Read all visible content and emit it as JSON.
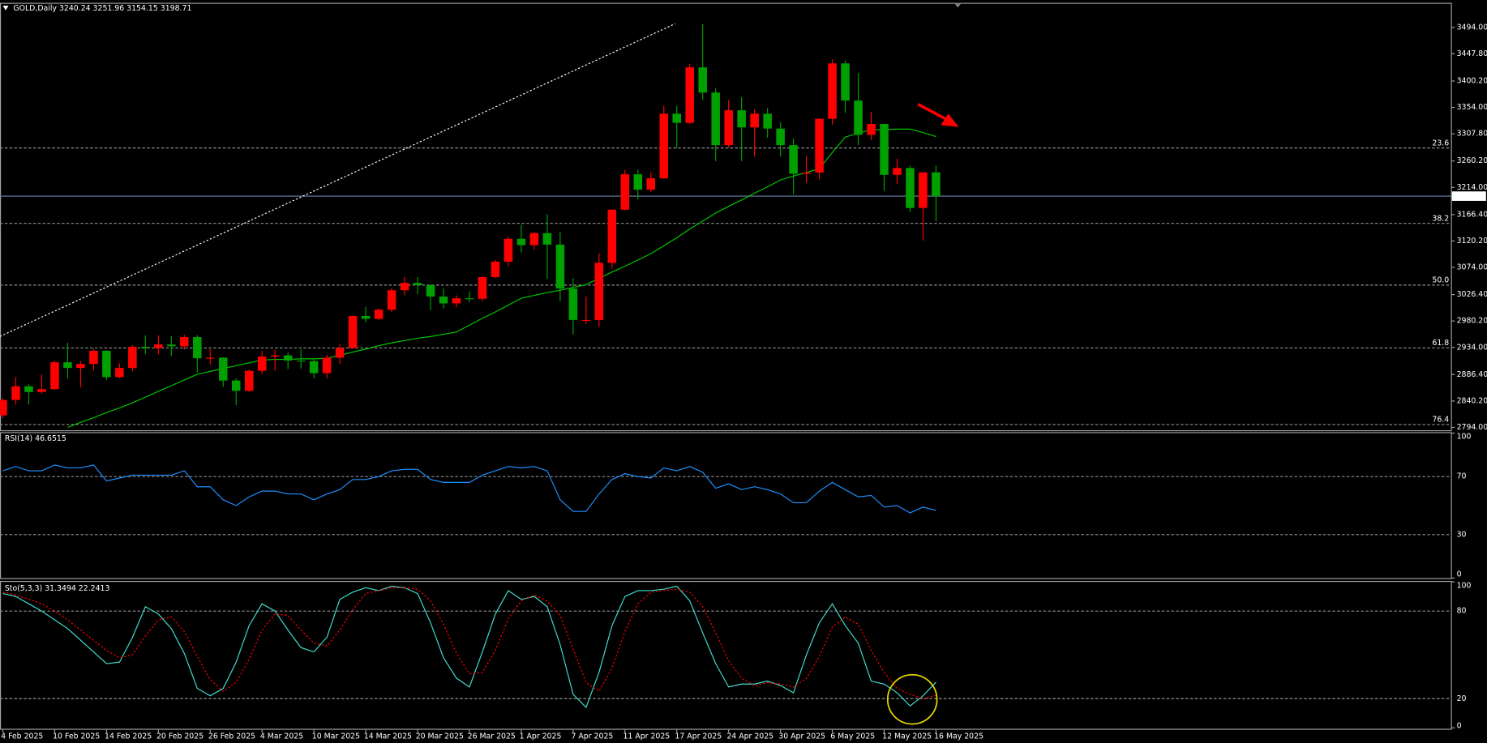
{
  "chart_data": [
    {
      "type": "candlestick",
      "title": "GOLD,Daily  3240.24 3251.96 3154.15 3198.71",
      "categories": [
        "4 Feb 2025",
        null,
        null,
        null,
        "10 Feb 2025",
        null,
        null,
        null,
        "14 Feb 2025",
        null,
        null,
        null,
        "20 Feb 2025",
        null,
        null,
        null,
        "26 Feb 2025",
        null,
        null,
        null,
        "4 Mar 2025",
        null,
        null,
        null,
        "10 Mar 2025",
        null,
        null,
        null,
        "14 Mar 2025",
        null,
        null,
        null,
        "20 Mar 2025",
        null,
        null,
        null,
        "26 Mar 2025",
        null,
        null,
        null,
        "1 Apr 2025",
        null,
        null,
        null,
        "7 Apr 2025",
        null,
        null,
        null,
        "11 Apr 2025",
        null,
        null,
        null,
        "17 Apr 2025",
        null,
        null,
        null,
        "24 Apr 2025",
        null,
        null,
        null,
        "30 Apr 2025",
        null,
        null,
        null,
        "6 May 2025",
        null,
        null,
        null,
        "12 May 2025",
        null,
        null,
        null,
        "16 May 2025"
      ],
      "open": [
        2815,
        2842,
        2866,
        2856,
        2861,
        2908,
        2898,
        2905,
        2928,
        2882,
        2898,
        2935,
        2933,
        2939,
        2936,
        2952,
        2915,
        2916,
        2876,
        2858,
        2893,
        2918,
        2920,
        2911,
        2910,
        2889,
        2916,
        2933,
        2989,
        2984,
        3000,
        3034,
        3047,
        3043,
        3023,
        3011,
        3020,
        3019,
        3057,
        3084,
        3124,
        3113,
        3134,
        3114,
        3037,
        2982,
        2982,
        3082,
        3175,
        3237,
        3210,
        3230,
        3343,
        3327,
        3424,
        3380,
        3288,
        3349,
        3319,
        3343,
        3317,
        3288,
        3238,
        3240,
        3334,
        3431,
        3366,
        3306,
        3325,
        3236,
        3248,
        3178,
        3240.24
      ],
      "high": [
        2845,
        2882,
        2870,
        2887,
        2911,
        2942,
        2910,
        2932,
        2929,
        2906,
        2938,
        2955,
        2955,
        2954,
        2956,
        2955,
        2931,
        2917,
        2880,
        2895,
        2928,
        2930,
        2925,
        2930,
        2914,
        2921,
        2940,
        2990,
        3005,
        3002,
        3038,
        3057,
        3057,
        3044,
        3037,
        3025,
        3032,
        3059,
        3087,
        3128,
        3149,
        3136,
        3167,
        3136,
        3055,
        3023,
        3099,
        3176,
        3245,
        3245,
        3240,
        3357,
        3357,
        3430,
        3500,
        3387,
        3367,
        3372,
        3351,
        3353,
        3328,
        3300,
        3269,
        3335,
        3438,
        3436,
        3414,
        3346,
        3325,
        3264,
        3252,
        3240.5,
        3251.96
      ],
      "low": [
        2810,
        2834,
        2834,
        2853,
        2860,
        2880,
        2864,
        2894,
        2877,
        2880,
        2892,
        2922,
        2922,
        2919,
        2930,
        2890,
        2904,
        2865,
        2833,
        2856,
        2888,
        2893,
        2896,
        2897,
        2880,
        2880,
        2905,
        2932,
        2978,
        2982,
        2996,
        3025,
        3027,
        2999,
        3002,
        3004,
        3013,
        3015,
        3055,
        3076,
        3100,
        3105,
        3054,
        3015,
        2957,
        2975,
        2970,
        3072,
        3174,
        3193,
        3206,
        3229,
        3283,
        3325,
        3367,
        3260,
        3284,
        3260,
        3268,
        3301,
        3268,
        3202,
        3222,
        3228,
        3324,
        3345,
        3288,
        3297,
        3208,
        3220,
        3171,
        3121,
        3154.15
      ],
      "close": [
        2842,
        2866,
        2856,
        2861,
        2908,
        2898,
        2905,
        2928,
        2882,
        2898,
        2935,
        2933,
        2939,
        2936,
        2952,
        2915,
        2916,
        2876,
        2858,
        2893,
        2918,
        2920,
        2911,
        2910,
        2889,
        2916,
        2933,
        2989,
        2984,
        3000,
        3034,
        3047,
        3043,
        3023,
        3011,
        3020,
        3019,
        3057,
        3084,
        3124,
        3113,
        3134,
        3114,
        3037,
        2982,
        2982,
        3082,
        3175,
        3237,
        3210,
        3230,
        3343,
        3327,
        3424,
        3380,
        3288,
        3349,
        3319,
        3343,
        3317,
        3288,
        3238,
        3240,
        3334,
        3431,
        3366,
        3306,
        3325,
        3236,
        3248,
        3178,
        3240.24,
        3198.71
      ],
      "up_color": "#ff0000",
      "down_color": "#00a000",
      "moving_average": {
        "color": "#00c800",
        "values": [
          null,
          null,
          null,
          null,
          null,
          2794,
          2803,
          2811,
          2820,
          2828,
          2837,
          2847,
          2857,
          2867,
          2877,
          2887,
          2892,
          2897,
          2902,
          2907,
          2912,
          2913,
          2913,
          2914,
          2914,
          2915,
          2920,
          2926,
          2931,
          2937,
          2942,
          2946,
          2950,
          2953,
          2957,
          2961,
          2973,
          2985,
          2996,
          3008,
          3020,
          3025,
          3030,
          3034,
          3039,
          3044,
          3055,
          3066,
          3076,
          3087,
          3098,
          3112,
          3126,
          3141,
          3155,
          3169,
          3181,
          3192,
          3204,
          3215,
          3227,
          3234,
          3240,
          3247,
          3275,
          3302,
          3309,
          3315,
          3315,
          3316,
          3316,
          3310,
          3303
        ]
      },
      "levels": [
        {
          "value": 3283,
          "label": "23.6"
        },
        {
          "value": 3151,
          "label": "38.2"
        },
        {
          "value": 3043,
          "label": "50.0"
        },
        {
          "value": 2933,
          "label": "61.8"
        },
        {
          "value": 2799,
          "label": "76.4"
        }
      ],
      "last_price": 3198.71,
      "ylim": [
        2789,
        3537
      ],
      "yticks": [
        {
          "value": 3494,
          "label": "3494.00"
        },
        {
          "value": 3447.8,
          "label": "3447.80"
        },
        {
          "value": 3400.2,
          "label": "3400.20"
        },
        {
          "value": 3354,
          "label": "3354.00"
        },
        {
          "value": 3307.8,
          "label": "3307.80"
        },
        {
          "value": 3260.2,
          "label": "3260.20"
        },
        {
          "value": 3214,
          "label": "3214.00"
        },
        {
          "value": 3166.4,
          "label": "3166.40"
        },
        {
          "value": 3120.2,
          "label": "3120.20"
        },
        {
          "value": 3074,
          "label": "3074.00"
        },
        {
          "value": 3026.4,
          "label": "3026.40"
        },
        {
          "value": 2980.2,
          "label": "2980.20"
        },
        {
          "value": 2934,
          "label": "2934.00"
        },
        {
          "value": 2886.4,
          "label": "2886.40"
        },
        {
          "value": 2840.2,
          "label": "2840.20"
        },
        {
          "value": 2794,
          "label": "2794.00"
        }
      ]
    },
    {
      "type": "line",
      "title": "RSI(14) 46.6515",
      "color": "#1e90ff",
      "values": [
        74,
        77,
        74,
        74,
        78,
        76,
        76,
        78,
        67,
        69,
        71,
        71,
        71,
        71,
        74,
        63,
        63,
        54,
        50,
        56,
        60,
        60,
        58,
        58,
        54,
        58,
        61,
        68,
        68,
        70,
        74,
        75,
        75,
        68,
        66,
        66,
        66,
        71,
        74,
        77,
        76,
        77,
        74,
        54,
        46,
        46,
        58,
        68,
        72,
        70,
        69,
        76,
        74,
        77,
        73,
        62,
        65,
        61,
        63,
        61,
        58,
        52,
        52,
        60,
        66,
        61,
        56,
        57,
        49,
        50,
        45,
        49,
        46.6515
      ],
      "ylim": [
        0,
        100
      ],
      "yticks": [
        0,
        30,
        70,
        100
      ]
    },
    {
      "type": "line",
      "title": "Sto(5,3,3) 31.3494 22.2413",
      "series": [
        {
          "color": "#40e0d0",
          "dashed": false,
          "values": [
            92,
            90,
            85,
            80,
            74,
            68,
            60,
            52,
            44,
            45,
            62,
            83,
            78,
            68,
            51,
            27,
            22,
            27,
            45,
            70,
            85,
            80,
            67,
            55,
            52,
            62,
            88,
            93,
            96,
            94,
            97,
            96,
            92,
            72,
            48,
            34,
            28,
            52,
            78,
            94,
            88,
            90,
            83,
            57,
            23,
            14,
            38,
            70,
            90,
            94,
            94,
            95,
            97,
            87,
            65,
            44,
            28,
            30,
            30,
            32,
            29,
            24,
            50,
            72,
            85,
            70,
            58,
            32,
            30,
            24,
            15,
            22,
            31.3494
          ]
        },
        {
          "color": "#ff0000",
          "dashed": true,
          "values": [
            93,
            91,
            88,
            85,
            80,
            74,
            67,
            60,
            53,
            48,
            50,
            63,
            74,
            76,
            66,
            49,
            33,
            25,
            31,
            47,
            67,
            78,
            77,
            67,
            58,
            56,
            67,
            81,
            92,
            94,
            96,
            96,
            95,
            87,
            71,
            51,
            37,
            38,
            53,
            75,
            87,
            91,
            87,
            77,
            54,
            31,
            25,
            41,
            66,
            85,
            93,
            94,
            95,
            93,
            83,
            65,
            46,
            34,
            29,
            31,
            30,
            28,
            34,
            49,
            69,
            76,
            71,
            53,
            38,
            27,
            23,
            20,
            22.2413
          ]
        }
      ],
      "ylim": [
        0,
        100
      ],
      "yticks": [
        0,
        20,
        80,
        100
      ]
    }
  ]
}
